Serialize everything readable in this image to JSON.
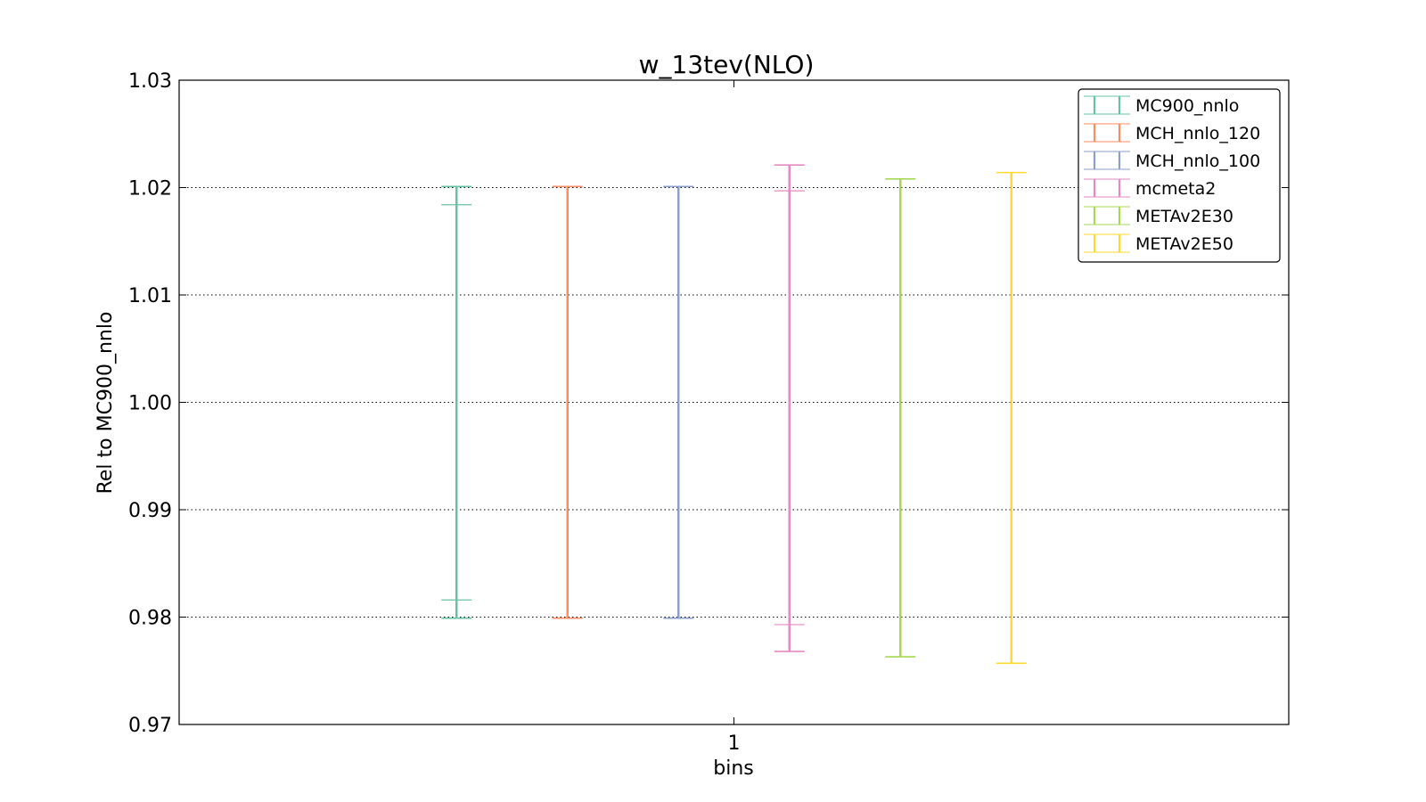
{
  "chart_data": {
    "type": "errorbar",
    "title": "w_13tev(NLO)",
    "xlabel": "bins",
    "ylabel": "Rel to MC900_nnlo",
    "ylim": [
      0.97,
      1.03
    ],
    "yticks": [
      "0.97",
      "0.98",
      "0.99",
      "1.00",
      "1.01",
      "1.02",
      "1.03"
    ],
    "xticks": [
      "1"
    ],
    "grid": "horizontal dotted",
    "legend_position": "top-right",
    "series": [
      {
        "name": "MC900_nnlo",
        "color": "#66c2a5",
        "central": 1.0,
        "outer": [
          0.9799,
          1.0201
        ],
        "inner": [
          0.9816,
          1.0184
        ]
      },
      {
        "name": "MCH_nnlo_120",
        "color": "#fc8d62",
        "central": 1.0,
        "outer": [
          0.9799,
          1.0201
        ],
        "inner": null
      },
      {
        "name": "MCH_nnlo_100",
        "color": "#8da0cb",
        "central": 1.0,
        "outer": [
          0.9799,
          1.0201
        ],
        "inner": null
      },
      {
        "name": "mcmeta2",
        "color": "#e78ac3",
        "central": 1.0,
        "outer": [
          0.9768,
          1.0221
        ],
        "inner": [
          0.9793,
          1.0197
        ]
      },
      {
        "name": "METAv2E30",
        "color": "#a6d854",
        "central": 1.0,
        "outer": [
          0.9763,
          1.0208
        ],
        "inner": null
      },
      {
        "name": "METAv2E50",
        "color": "#ffd92f",
        "central": 1.0,
        "outer": [
          0.9757,
          1.0214
        ],
        "inner": null
      }
    ]
  }
}
